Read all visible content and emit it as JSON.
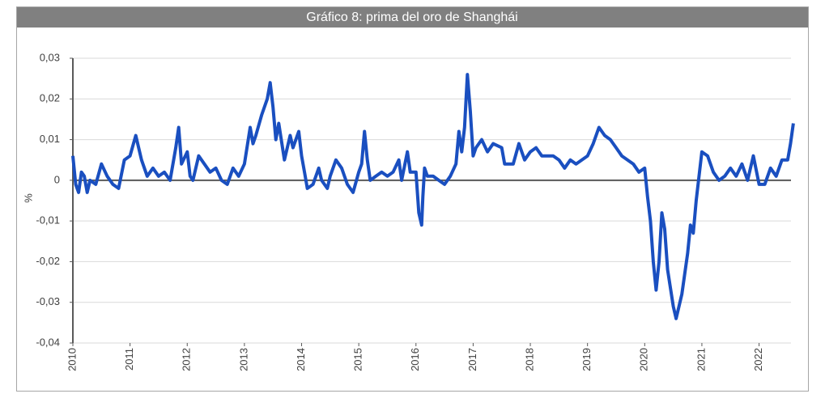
{
  "chart_data": {
    "type": "line",
    "title": "Gráfico 8: prima del oro de Shanghái",
    "y_label": "%",
    "color": "#1a4fc0",
    "grid": true,
    "xlim": [
      2010,
      2022.7
    ],
    "xticks": [
      2010,
      2011,
      2012,
      2013,
      2014,
      2015,
      2016,
      2017,
      2018,
      2019,
      2020,
      2021,
      2022
    ],
    "ylim": [
      -0.04,
      0.03
    ],
    "yticks": [
      {
        "value": -0.04,
        "label": "-0,04"
      },
      {
        "value": -0.03,
        "label": "-0,03"
      },
      {
        "value": -0.02,
        "label": "-0,02"
      },
      {
        "value": -0.01,
        "label": "-0,01"
      },
      0,
      {
        "value": 0.01,
        "label": "0,01"
      },
      {
        "value": 0.02,
        "label": "0,02"
      },
      {
        "value": 0.03,
        "label": "0,03"
      }
    ],
    "x": [
      2010,
      2010.05,
      2010.1,
      2010.15,
      2010.2,
      2010.25,
      2010.3,
      2010.4,
      2010.5,
      2010.6,
      2010.7,
      2010.8,
      2010.9,
      2011.0,
      2011.1,
      2011.2,
      2011.3,
      2011.4,
      2011.5,
      2011.6,
      2011.7,
      2011.8,
      2011.85,
      2011.9,
      2012.0,
      2012.05,
      2012.1,
      2012.2,
      2012.3,
      2012.4,
      2012.5,
      2012.6,
      2012.7,
      2012.8,
      2012.9,
      2013.0,
      2013.1,
      2013.15,
      2013.2,
      2013.3,
      2013.4,
      2013.45,
      2013.5,
      2013.55,
      2013.6,
      2013.7,
      2013.8,
      2013.85,
      2013.95,
      2014.0,
      2014.05,
      2014.1,
      2014.2,
      2014.3,
      2014.35,
      2014.45,
      2014.5,
      2014.6,
      2014.7,
      2014.8,
      2014.9,
      2015.0,
      2015.05,
      2015.1,
      2015.15,
      2015.2,
      2015.3,
      2015.4,
      2015.5,
      2015.6,
      2015.7,
      2015.75,
      2015.85,
      2015.9,
      2016.0,
      2016.05,
      2016.1,
      2016.12,
      2016.15,
      2016.2,
      2016.3,
      2016.4,
      2016.5,
      2016.6,
      2016.7,
      2016.75,
      2016.8,
      2016.85,
      2016.9,
      2016.95,
      2017.0,
      2017.05,
      2017.15,
      2017.25,
      2017.35,
      2017.5,
      2017.55,
      2017.7,
      2017.8,
      2017.9,
      2018.0,
      2018.1,
      2018.2,
      2018.4,
      2018.5,
      2018.6,
      2018.7,
      2018.8,
      2018.9,
      2019.0,
      2019.1,
      2019.2,
      2019.3,
      2019.4,
      2019.5,
      2019.6,
      2019.7,
      2019.8,
      2019.9,
      2020.0,
      2020.05,
      2020.1,
      2020.15,
      2020.2,
      2020.25,
      2020.3,
      2020.35,
      2020.4,
      2020.5,
      2020.55,
      2020.65,
      2020.75,
      2020.8,
      2020.85,
      2020.9,
      2020.95,
      2021.0,
      2021.1,
      2021.2,
      2021.3,
      2021.4,
      2021.5,
      2021.6,
      2021.7,
      2021.8,
      2021.9,
      2022.0,
      2022.1,
      2022.2,
      2022.3,
      2022.4,
      2022.5,
      2022.55,
      2022.6
    ],
    "values": [
      0.006,
      -0.001,
      -0.003,
      0.002,
      0.001,
      -0.003,
      0,
      -0.001,
      0.004,
      0.001,
      -0.001,
      -0.002,
      0.005,
      0.006,
      0.011,
      0.005,
      0.001,
      0.003,
      0.001,
      0.002,
      0,
      0.008,
      0.013,
      0.004,
      0.007,
      0.001,
      0,
      0.006,
      0.004,
      0.002,
      0.003,
      0,
      -0.001,
      0.003,
      0.001,
      0.004,
      0.013,
      0.009,
      0.011,
      0.016,
      0.02,
      0.024,
      0.018,
      0.01,
      0.014,
      0.005,
      0.011,
      0.008,
      0.012,
      0.006,
      0.002,
      -0.002,
      -0.001,
      0.003,
      0,
      -0.002,
      0.001,
      0.005,
      0.003,
      -0.001,
      -0.003,
      0.002,
      0.004,
      0.012,
      0.005,
      0,
      0.001,
      0.002,
      0.001,
      0.002,
      0.005,
      0,
      0.007,
      0.002,
      0.002,
      -0.008,
      -0.011,
      -0.004,
      0.003,
      0.001,
      0.001,
      0,
      -0.001,
      0.001,
      0.004,
      0.012,
      0.007,
      0.013,
      0.026,
      0.017,
      0.006,
      0.008,
      0.01,
      0.007,
      0.009,
      0.008,
      0.004,
      0.004,
      0.009,
      0.005,
      0.007,
      0.008,
      0.006,
      0.006,
      0.005,
      0.003,
      0.005,
      0.004,
      0.005,
      0.006,
      0.009,
      0.013,
      0.011,
      0.01,
      0.008,
      0.006,
      0.005,
      0.004,
      0.002,
      0.003,
      -0.004,
      -0.01,
      -0.02,
      -0.027,
      -0.02,
      -0.008,
      -0.012,
      -0.022,
      -0.031,
      -0.034,
      -0.028,
      -0.018,
      -0.011,
      -0.013,
      -0.005,
      0.001,
      0.007,
      0.006,
      0.002,
      0,
      0.001,
      0.003,
      0.001,
      0.004,
      0,
      0.006,
      -0.001,
      -0.001,
      0.003,
      0.001,
      0.005,
      0.005,
      0.009,
      0.014
    ]
  }
}
